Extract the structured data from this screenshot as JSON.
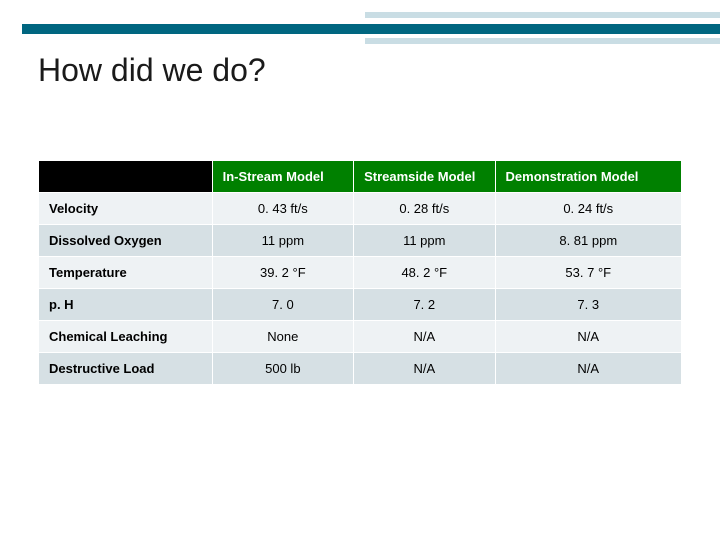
{
  "title": "How did we do?",
  "decoration": {
    "teal": "#006680",
    "light": "#c9dde4"
  },
  "table": {
    "header_bg": "#008000",
    "header_fg": "#ffffff",
    "blank_header_bg": "#000000",
    "row_alt1_bg": "#eef2f4",
    "row_alt2_bg": "#d6e0e4",
    "border_color": "#ffffff",
    "fontsize": 13,
    "col_widths_pct": [
      27,
      22,
      22,
      29
    ],
    "headers": [
      "",
      "In-Stream Model",
      "Streamside Model",
      "Demonstration Model"
    ],
    "rows": [
      {
        "label": "Velocity",
        "cells": [
          "0. 43 ft/s",
          "0. 28 ft/s",
          "0. 24 ft/s"
        ]
      },
      {
        "label": "Dissolved Oxygen",
        "cells": [
          "11 ppm",
          "11 ppm",
          "8. 81 ppm"
        ]
      },
      {
        "label": "Temperature",
        "cells": [
          "39. 2 °F",
          "48. 2 °F",
          "53. 7 °F"
        ]
      },
      {
        "label": "p. H",
        "cells": [
          "7. 0",
          "7. 2",
          "7. 3"
        ]
      },
      {
        "label": "Chemical Leaching",
        "cells": [
          "None",
          "N/A",
          "N/A"
        ]
      },
      {
        "label": "Destructive Load",
        "cells": [
          "500 lb",
          "N/A",
          "N/A"
        ]
      }
    ]
  }
}
